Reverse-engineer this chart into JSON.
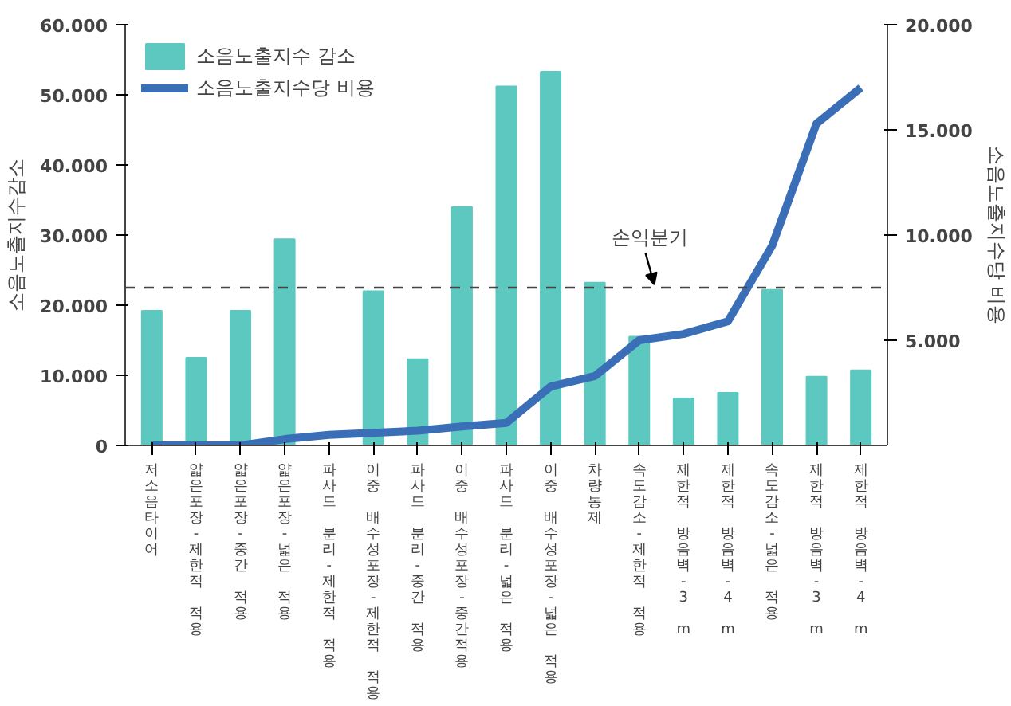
{
  "chart_data": {
    "type": "bar",
    "categories": [
      "저소음타이어",
      "얇은포장-제한적 적용",
      "얇은포장-중간 적용",
      "얇은포장-넓은 적용",
      "파사드 분리-제한적 적용",
      "이중 배수성포장-제한적 적용",
      "파사드 분리-중간 적용",
      "이중 배수성포장-중간적용",
      "파사드 분리-넓은 적용",
      "이중 배수성포장-넓은 적용",
      "차량통제",
      "속도감소-제한적 적용",
      "제한적 방음벽-3 m",
      "제한적 방음벽-4 m",
      "속도감소-넓은 적용",
      "제한적 방음벽-3 m",
      "제한적 방음벽-4 m"
    ],
    "ylabel": "소음노출지수감소",
    "y2label": "소음노출지수당 비용",
    "ylim": [
      0,
      60000
    ],
    "yticks": [
      0,
      {
        "value": 10000,
        "label": "10.000"
      },
      {
        "value": 20000,
        "label": "20.000"
      },
      {
        "value": 30000,
        "label": "30.000"
      },
      {
        "value": 40000,
        "label": "40.000"
      },
      {
        "value": 50000,
        "label": "50.000"
      },
      {
        "value": 60000,
        "label": "60.000"
      }
    ],
    "y2lim": [
      0,
      20000
    ],
    "y2ticks": [
      {
        "value": 5000,
        "label": "5.000"
      },
      {
        "value": 10000,
        "label": "10.000"
      },
      {
        "value": 15000,
        "label": "15.000"
      },
      {
        "value": 20000,
        "label": "20.000"
      }
    ],
    "series": [
      {
        "name": "소음노출지수 감소",
        "color": "#5cc8c0",
        "values": [
          19200,
          12500,
          19200,
          29400,
          null,
          22000,
          12300,
          34000,
          51200,
          53300,
          23200,
          15500,
          6700,
          7500,
          22200,
          9800,
          10700
        ]
      },
      {
        "name": "소음노출지수당 비용",
        "type": "line",
        "axis": "y2",
        "color": "#3a6fb8",
        "values": [
          0,
          0,
          0,
          300,
          500,
          600,
          700,
          900,
          1070,
          2800,
          3300,
          5000,
          5300,
          5900,
          9500,
          15300,
          17000
        ]
      }
    ],
    "ref_lines": [
      {
        "axis": "y",
        "value": 22500,
        "label": "손익분기",
        "line_style": "dashed",
        "color": "#444444"
      }
    ],
    "legend": "top left",
    "grid": false
  }
}
